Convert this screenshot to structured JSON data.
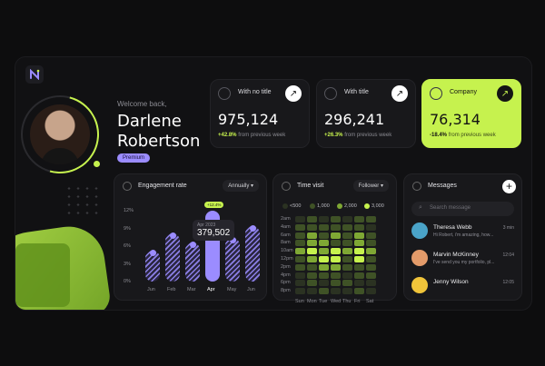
{
  "profile": {
    "welcome": "Welcome back,",
    "first_name": "Darlene",
    "last_name": "Robertson",
    "badge": "Premium"
  },
  "stats": [
    {
      "title": "With no title",
      "value": "975,124",
      "change": "+42.8%",
      "change_text": "from previous week",
      "icon": "user-icon"
    },
    {
      "title": "With title",
      "value": "296,241",
      "change": "+26.3%",
      "change_text": "from previous week",
      "icon": "cube-icon"
    },
    {
      "title": "Company",
      "value": "76,314",
      "change": "-18.4%",
      "change_text": "from previous week",
      "icon": "briefcase-icon"
    }
  ],
  "engagement": {
    "title": "Engagement rate",
    "filter": "Annually",
    "tooltip_date": "Apr 2023",
    "tooltip_value": "379,502",
    "tooltip_pill": "+12.4%"
  },
  "chart_data": {
    "type": "bar",
    "categories": [
      "Jun",
      "Feb",
      "Mar",
      "Apr",
      "May",
      "Jun"
    ],
    "values": [
      5.2,
      8.2,
      6.6,
      12,
      7.4,
      9.4
    ],
    "ylim": [
      0,
      12
    ],
    "yticks": [
      "12%",
      "9%",
      "6%",
      "3%",
      "0%"
    ],
    "highlight_index": 3
  },
  "time_visit": {
    "title": "Time visit",
    "filter": "Follower",
    "legend": [
      "<500",
      "1,000",
      "2,000",
      "3,000"
    ],
    "rows": [
      "2am",
      "4am",
      "6am",
      "8am",
      "10am",
      "12pm",
      "2pm",
      "4pm",
      "6pm",
      "8pm"
    ],
    "cols": [
      "Sun",
      "Mon",
      "Tue",
      "Wed",
      "Thu",
      "Fri",
      "Sat"
    ],
    "levels": [
      [
        0,
        1,
        0,
        1,
        0,
        1,
        1
      ],
      [
        1,
        1,
        1,
        1,
        1,
        1,
        0
      ],
      [
        1,
        2,
        1,
        2,
        1,
        2,
        1
      ],
      [
        1,
        2,
        2,
        1,
        1,
        2,
        1
      ],
      [
        2,
        3,
        2,
        3,
        2,
        3,
        2
      ],
      [
        1,
        2,
        3,
        3,
        1,
        3,
        1
      ],
      [
        1,
        1,
        2,
        2,
        1,
        1,
        1
      ],
      [
        0,
        1,
        1,
        1,
        0,
        1,
        1
      ],
      [
        0,
        1,
        0,
        1,
        1,
        0,
        0
      ],
      [
        0,
        0,
        1,
        0,
        0,
        1,
        0
      ]
    ],
    "colors": [
      "#2b3222",
      "#3f5226",
      "#7fa834",
      "#c6f24e"
    ]
  },
  "messages": {
    "title": "Messages",
    "search_placeholder": "Search message",
    "items": [
      {
        "name": "Theresa Webb",
        "text": "Hi Robert, i'm amazing, how...",
        "time": "3 min",
        "color": "#4aa3c8"
      },
      {
        "name": "Marvin McKinney",
        "text": "I've send you my portfolio, pl...",
        "time": "12:04",
        "color": "#e39b6a"
      },
      {
        "name": "Jenny Wilson",
        "text": "",
        "time": "12:05",
        "color": "#f0c43a"
      }
    ]
  }
}
